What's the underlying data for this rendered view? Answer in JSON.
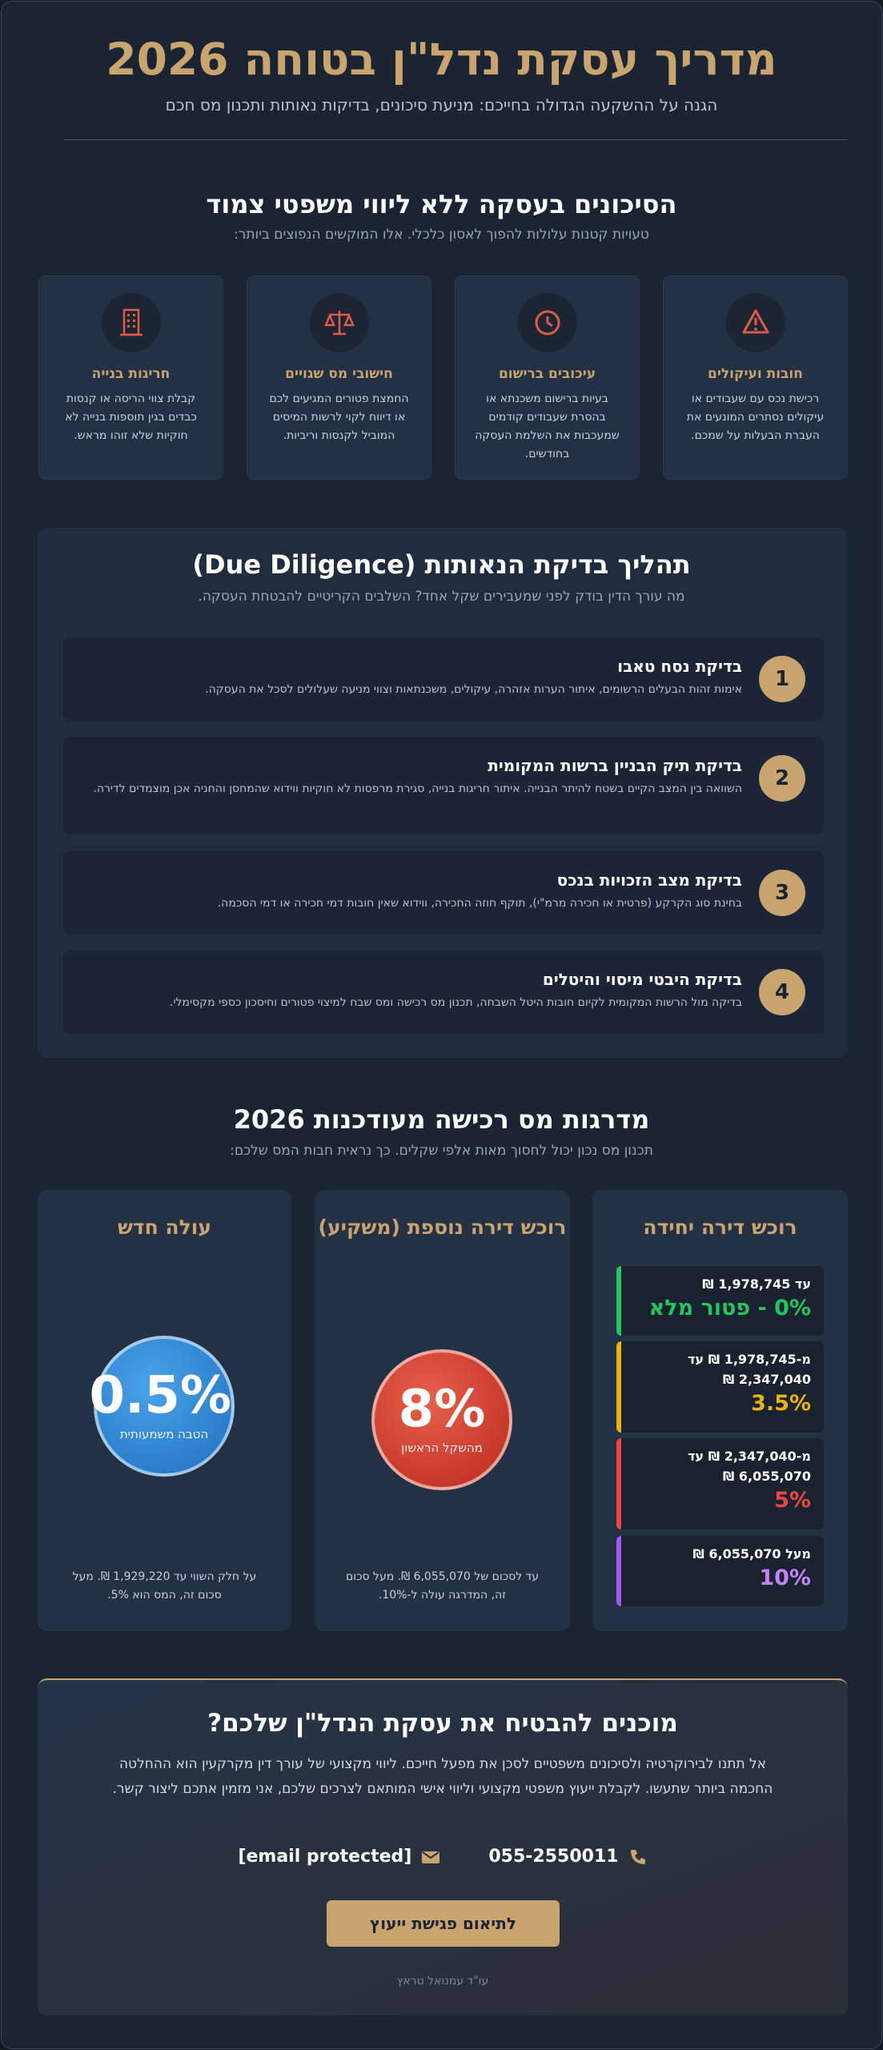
{
  "header": {
    "title": "מדריך עסקת נדל\"ן בטוחה 2026",
    "subtitle": "הגנה על ההשקעה הגדולה בחייכם: מניעת סיכונים, בדיקות נאותות ותכנון מס חכם"
  },
  "risks": {
    "title": "הסיכונים בעסקה ללא ליווי משפטי צמוד",
    "subtitle": "טעויות קטנות עלולות להפוך לאסון כלכלי. אלו המוקשים הנפוצים ביותר:",
    "items": [
      {
        "title": "חובות ועיקולים",
        "text": "רכישת נכס עם שעבודים או עיקולים נסתרים המונעים את העברת הבעלות על שמכם."
      },
      {
        "title": "עיכובים ברישום",
        "text": "בעיות ברישום משכנתא או בהסרת שעבודים קודמים שמעכבות את השלמת העסקה בחודשים."
      },
      {
        "title": "חישובי מס שגויים",
        "text": "החמצת פטורים המגיעים לכם או דיווח לקוי לרשות המיסים המוביל לקנסות וריביות."
      },
      {
        "title": "חריגות בנייה",
        "text": "קבלת צווי הריסה או קנסות כבדים בגין תוספות בנייה לא חוקיות שלא זוהו מראש."
      }
    ]
  },
  "due_diligence": {
    "title": "תהליך בדיקת הנאותות (Due Diligence)",
    "subtitle": "מה עורך הדין בודק לפני שמעבירים שקל אחד? השלבים הקריטיים להבטחת העסקה.",
    "steps": [
      {
        "number": "1",
        "title": "בדיקת נסח טאבו",
        "text": "אימות זהות הבעלים הרשומים, איתור הערות אזהרה, עיקולים, משכנתאות וצווי מניעה שעלולים לסכל את העסקה."
      },
      {
        "number": "2",
        "title": "בדיקת תיק הבניין ברשות המקומית",
        "text": "השוואה בין המצב הקיים בשטח להיתר הבנייה. איתור חריגות בנייה, סגירת מרפסות לא חוקיות ווידוא שהמחסן והחניה אכן מוצמדים לדירה."
      },
      {
        "number": "3",
        "title": "בדיקת מצב הזכויות בנכס",
        "text": "בחינת סוג הקרקע (פרטית או חכירה מרמ\"י), תוקף חוזה החכירה, ווידוא שאין חובות דמי חכירה או דמי הסכמה."
      },
      {
        "number": "4",
        "title": "בדיקת היבטי מיסוי והיטלים",
        "text": "בדיקה מול הרשות המקומית לקיום חובות היטל השבחה, תכנון מס רכישה ומס שבח למיצוי פטורים וחיסכון כספי מקסימלי."
      }
    ]
  },
  "tax": {
    "title": "מדרגות מס רכישה מעודכנות 2026",
    "subtitle": "תכנון מס נכון יכול לחסוך מאות אלפי שקלים. כך נראית חבות המס שלכם:",
    "columns": [
      {
        "title": "רוכש דירה יחידה",
        "tiers": [
          {
            "range": "עד 1,978,745 ₪",
            "rate": "0% - פטור מלא"
          },
          {
            "range": "מ-1,978,745 ₪ עד 2,347,040 ₪",
            "rate": "3.5%"
          },
          {
            "range": "מ-2,347,040 ₪ עד 6,055,070 ₪",
            "rate": "5%"
          },
          {
            "range": "מעל 6,055,070 ₪",
            "rate": "10%"
          }
        ]
      },
      {
        "title": "רוכש דירה נוספת (משקיע)",
        "rate": "8%",
        "caption": "מהשקל הראשון",
        "note": "עד לסכום של 6,055,070 ₪. מעל סכום זה, המדרגה עולה ל-10%."
      },
      {
        "title": "עולה חדש",
        "rate": "0.5%",
        "caption": "הטבה משמעותית",
        "note": "על חלק השווי עד 1,929,220 ₪. מעל סכום זה, המס הוא 5%."
      }
    ]
  },
  "cta": {
    "title": "מוכנים להבטיח את עסקת הנדל\"ן שלכם?",
    "text": "אל תתנו לבירוקרטיה ולסיכונים משפטיים לסכן את מפעל חייכם. ליווי מקצועי של עורך דין מקרקעין הוא ההחלטה החכמה ביותר שתעשו. לקבלת ייעוץ משפטי מקצועי וליווי אישי המותאם לצרכים שלכם, אני מזמין אתכם ליצור קשר.",
    "phone": "055-2550011",
    "email": "[email protected]",
    "button": "לתיאום פגישת ייעוץ",
    "signature": "עו\"ד עמנואל טראץ"
  }
}
